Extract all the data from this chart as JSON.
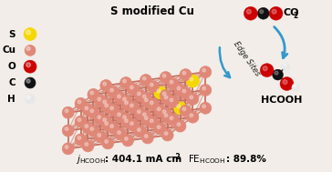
{
  "title": "S modified Cu",
  "background_color": "#f2ede8",
  "legend_labels": [
    "S",
    "Cu",
    "O",
    "C",
    "H"
  ],
  "legend_colors": [
    "#f5d800",
    "#e08878",
    "#cc0000",
    "#111111",
    "#e8e8e8"
  ],
  "cu_color": "#e08878",
  "s_color": "#f5d800",
  "o_color": "#cc0000",
  "c_color": "#111111",
  "h_color": "#e8e8e8",
  "bond_color": "#c87060",
  "edge_sites_text": "Edge Sites",
  "co2_label": "CO₂",
  "hcooh_label": "HCOOH",
  "bottom_left": "j",
  "bottom_right": "FE",
  "j_val": "404.1 mA cm",
  "fe_val": "89.8%"
}
